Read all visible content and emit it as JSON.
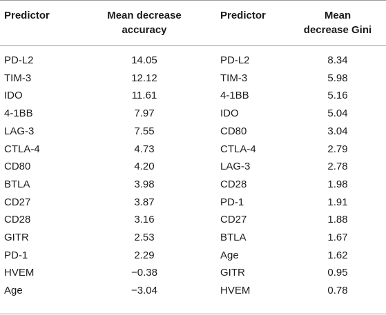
{
  "columns": [
    {
      "line1": "Predictor",
      "line2": ""
    },
    {
      "line1": "Mean decrease",
      "line2": "accuracy"
    },
    {
      "line1": "Predictor",
      "line2": ""
    },
    {
      "line1": "Mean",
      "line2": "decrease Gini"
    }
  ],
  "rows": [
    [
      "PD-L2",
      "14.05",
      "PD-L2",
      "8.34"
    ],
    [
      "TIM-3",
      "12.12",
      "TIM-3",
      "5.98"
    ],
    [
      "IDO",
      "11.61",
      "4-1BB",
      "5.16"
    ],
    [
      "4-1BB",
      "7.97",
      "IDO",
      "5.04"
    ],
    [
      "LAG-3",
      "7.55",
      "CD80",
      "3.04"
    ],
    [
      "CTLA-4",
      "4.73",
      "CTLA-4",
      "2.79"
    ],
    [
      "CD80",
      "4.20",
      "LAG-3",
      "2.78"
    ],
    [
      "BTLA",
      "3.98",
      "CD28",
      "1.98"
    ],
    [
      "CD27",
      "3.87",
      "PD-1",
      "1.91"
    ],
    [
      "CD28",
      "3.16",
      "CD27",
      "1.88"
    ],
    [
      "GITR",
      "2.53",
      "BTLA",
      "1.67"
    ],
    [
      "PD-1",
      "2.29",
      "Age",
      "1.62"
    ],
    [
      "HVEM",
      "−0.38",
      "GITR",
      "0.95"
    ],
    [
      "Age",
      "−3.04",
      "HVEM",
      "0.78"
    ]
  ]
}
